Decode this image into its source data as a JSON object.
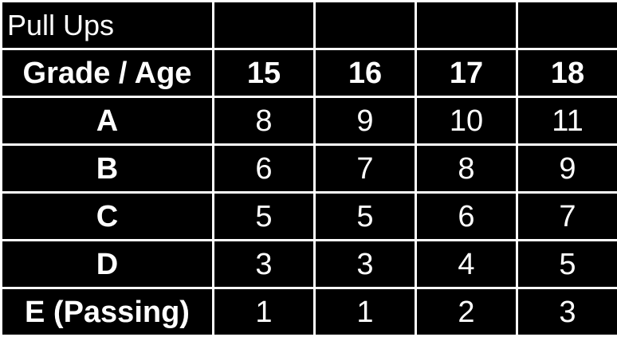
{
  "table": {
    "title": "Pull Ups",
    "corner_header": "Grade / Age",
    "ages": [
      "15",
      "16",
      "17",
      "18"
    ],
    "rows": [
      {
        "grade": "A",
        "values": [
          "8",
          "9",
          "10",
          "11"
        ]
      },
      {
        "grade": "B",
        "values": [
          "6",
          "7",
          "8",
          "9"
        ]
      },
      {
        "grade": "C",
        "values": [
          "5",
          "5",
          "6",
          "7"
        ]
      },
      {
        "grade": "D",
        "values": [
          "3",
          "3",
          "4",
          "5"
        ]
      },
      {
        "grade": "E (Passing)",
        "values": [
          "1",
          "1",
          "2",
          "3"
        ]
      }
    ]
  },
  "colors": {
    "background": "#000000",
    "text": "#ffffff",
    "grid_lines": "#ffffff"
  }
}
